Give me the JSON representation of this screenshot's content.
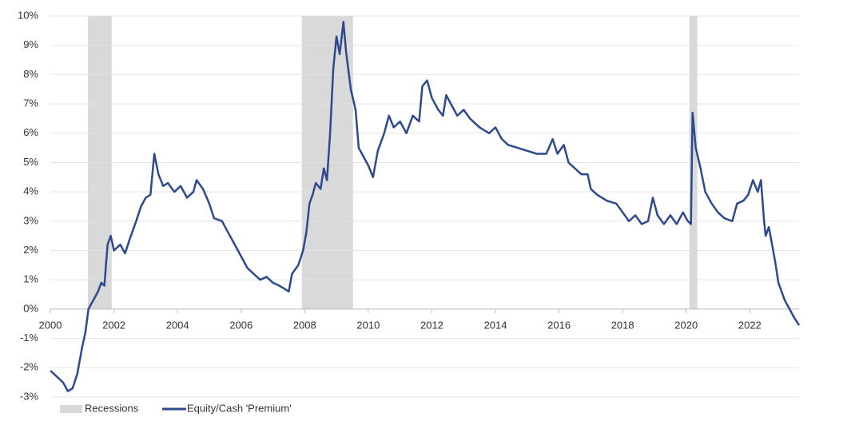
{
  "chart_data": {
    "type": "line",
    "xlim": [
      2000,
      2023.55
    ],
    "xticks": [
      2000,
      2002,
      2004,
      2006,
      2008,
      2010,
      2012,
      2014,
      2016,
      2018,
      2020,
      2022
    ],
    "ylim": [
      -3,
      10
    ],
    "yticks": [
      {
        "value": -3,
        "label": "-3%"
      },
      {
        "value": -2,
        "label": "-2%"
      },
      {
        "value": -1,
        "label": "-1%"
      },
      {
        "value": 0,
        "label": "0%"
      },
      {
        "value": 1,
        "label": "1%"
      },
      {
        "value": 2,
        "label": "2%"
      },
      {
        "value": 3,
        "label": "3%"
      },
      {
        "value": 4,
        "label": "4%"
      },
      {
        "value": 5,
        "label": "5%"
      },
      {
        "value": 6,
        "label": "6%"
      },
      {
        "value": 7,
        "label": "7%"
      },
      {
        "value": 8,
        "label": "8%"
      },
      {
        "value": 9,
        "label": "9%"
      },
      {
        "value": 10,
        "label": "10%"
      }
    ],
    "grid": true,
    "legend": "bottom-left",
    "recessions": {
      "name": "Recessions",
      "color": "#d9d9d9",
      "ranges": [
        [
          2001.18,
          2001.93
        ],
        [
          2007.91,
          2009.52
        ],
        [
          2020.1,
          2020.35
        ]
      ]
    },
    "series": [
      {
        "name": "Equity/Cash 'Premium'",
        "color": "#2e4a8c",
        "x": [
          2000.0,
          2000.2,
          2000.4,
          2000.55,
          2000.7,
          2000.85,
          2001.0,
          2001.1,
          2001.2,
          2001.35,
          2001.5,
          2001.6,
          2001.7,
          2001.8,
          2001.9,
          2002.0,
          2002.2,
          2002.35,
          2002.5,
          2002.7,
          2002.85,
          2003.0,
          2003.15,
          2003.27,
          2003.4,
          2003.55,
          2003.7,
          2003.9,
          2004.1,
          2004.3,
          2004.5,
          2004.6,
          2004.8,
          2005.0,
          2005.15,
          2005.4,
          2005.55,
          2005.75,
          2006.0,
          2006.2,
          2006.4,
          2006.6,
          2006.8,
          2007.0,
          2007.2,
          2007.35,
          2007.5,
          2007.6,
          2007.8,
          2007.95,
          2008.05,
          2008.15,
          2008.25,
          2008.35,
          2008.5,
          2008.6,
          2008.7,
          2008.8,
          2008.9,
          2009.0,
          2009.1,
          2009.22,
          2009.3,
          2009.45,
          2009.6,
          2009.7,
          2009.85,
          2010.0,
          2010.15,
          2010.3,
          2010.5,
          2010.65,
          2010.8,
          2011.0,
          2011.2,
          2011.4,
          2011.6,
          2011.7,
          2011.85,
          2012.0,
          2012.2,
          2012.35,
          2012.45,
          2012.6,
          2012.8,
          2013.0,
          2013.2,
          2013.5,
          2013.8,
          2014.0,
          2014.2,
          2014.4,
          2014.7,
          2015.0,
          2015.3,
          2015.6,
          2015.8,
          2015.95,
          2016.15,
          2016.3,
          2016.5,
          2016.7,
          2016.9,
          2017.0,
          2017.2,
          2017.5,
          2017.8,
          2018.0,
          2018.2,
          2018.4,
          2018.6,
          2018.8,
          2018.95,
          2019.1,
          2019.3,
          2019.5,
          2019.7,
          2019.9,
          2020.05,
          2020.15,
          2020.2,
          2020.3,
          2020.45,
          2020.6,
          2020.8,
          2021.0,
          2021.2,
          2021.45,
          2021.6,
          2021.8,
          2021.95,
          2022.1,
          2022.25,
          2022.35,
          2022.45,
          2022.5,
          2022.6,
          2022.7,
          2022.8,
          2022.9,
          2023.0,
          2023.1,
          2023.25,
          2023.4,
          2023.55
        ],
        "values": [
          -2.1,
          -2.3,
          -2.5,
          -2.8,
          -2.7,
          -2.2,
          -1.3,
          -0.8,
          0.0,
          0.3,
          0.6,
          0.9,
          0.8,
          2.2,
          2.5,
          2.0,
          2.2,
          1.9,
          2.4,
          3.0,
          3.5,
          3.8,
          3.9,
          5.3,
          4.6,
          4.2,
          4.3,
          4.0,
          4.2,
          3.8,
          4.0,
          4.4,
          4.1,
          3.6,
          3.1,
          3.0,
          2.7,
          2.3,
          1.8,
          1.4,
          1.2,
          1.0,
          1.1,
          0.9,
          0.8,
          0.7,
          0.6,
          1.2,
          1.5,
          2.0,
          2.6,
          3.6,
          3.9,
          4.3,
          4.1,
          4.8,
          4.4,
          6.0,
          8.2,
          9.3,
          8.7,
          9.8,
          8.8,
          7.5,
          6.8,
          5.5,
          5.2,
          4.9,
          4.5,
          5.4,
          6.0,
          6.6,
          6.2,
          6.4,
          6.0,
          6.6,
          6.4,
          7.6,
          7.8,
          7.2,
          6.8,
          6.6,
          7.3,
          7.0,
          6.6,
          6.8,
          6.5,
          6.2,
          6.0,
          6.2,
          5.8,
          5.6,
          5.5,
          5.4,
          5.3,
          5.3,
          5.8,
          5.3,
          5.6,
          5.0,
          4.8,
          4.6,
          4.6,
          4.1,
          3.9,
          3.7,
          3.6,
          3.3,
          3.0,
          3.2,
          2.9,
          3.0,
          3.8,
          3.2,
          2.9,
          3.2,
          2.9,
          3.3,
          3.0,
          2.9,
          6.7,
          5.5,
          4.8,
          4.0,
          3.6,
          3.3,
          3.1,
          3.0,
          3.6,
          3.7,
          3.9,
          4.4,
          4.0,
          4.4,
          3.0,
          2.5,
          2.8,
          2.2,
          1.6,
          0.9,
          0.6,
          0.3,
          0.0,
          -0.3,
          -0.55
        ]
      }
    ]
  }
}
